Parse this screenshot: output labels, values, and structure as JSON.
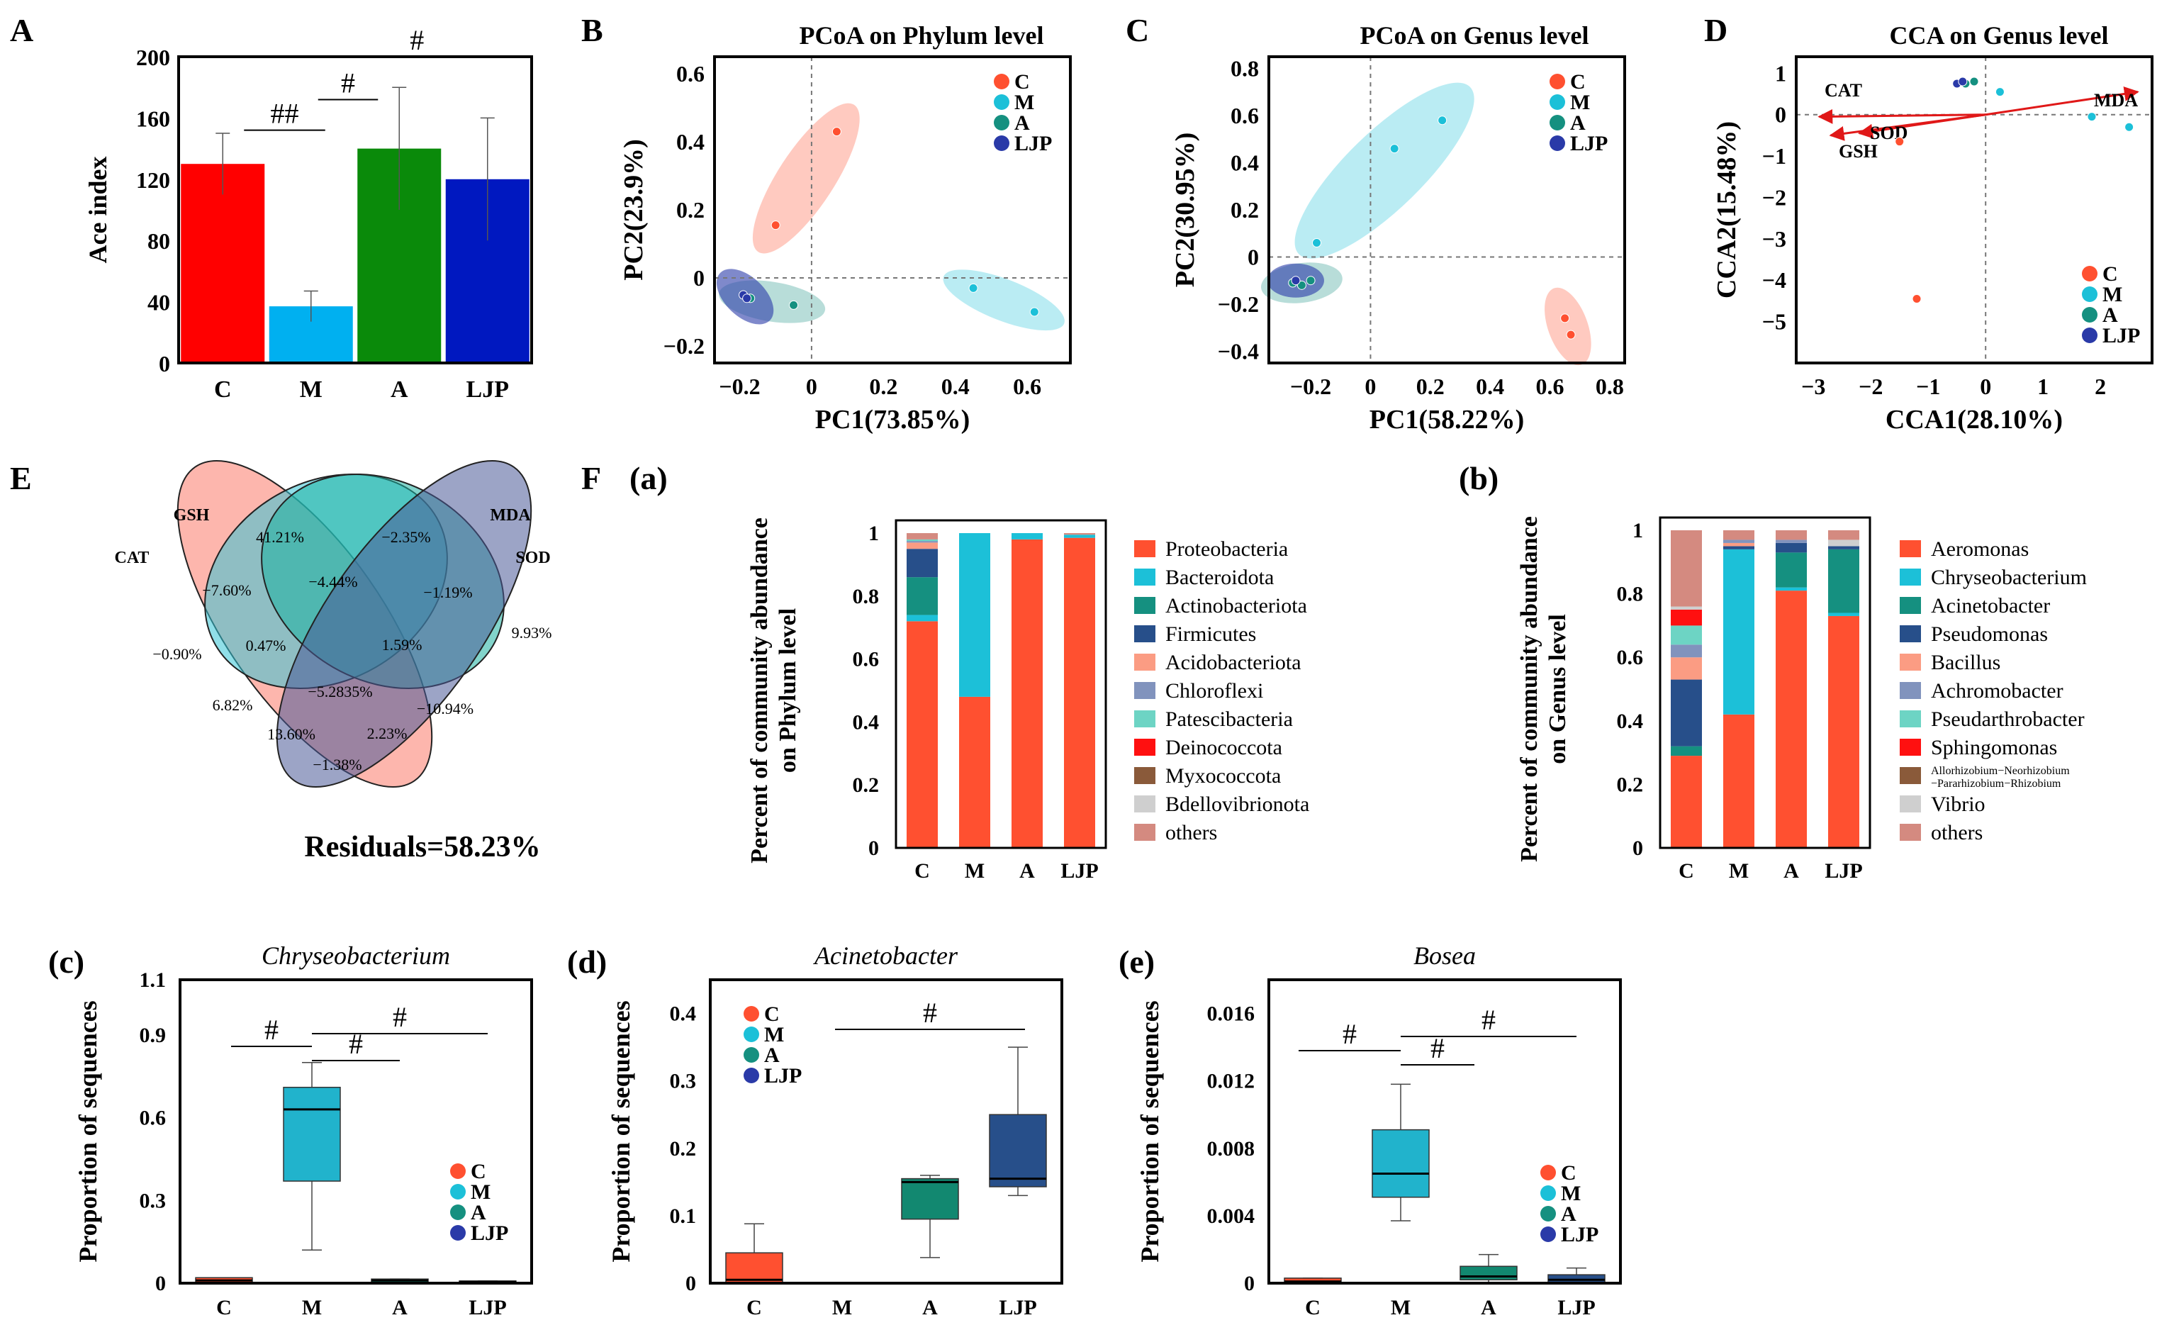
{
  "colors": {
    "C": "#ff5030",
    "M": "#1cc0d8",
    "A": "#159080",
    "LJP": "#2a3aa8",
    "barC": "#ff0000",
    "barM": "#00b0f0",
    "barA": "#0a8a0a",
    "barLJP": "#0018c0"
  },
  "panel_labels": {
    "A": "A",
    "B": "B",
    "C": "C",
    "D": "D",
    "E": "E",
    "F": "F",
    "Fa": "(a)",
    "Fb": "(b)",
    "c": "(c)",
    "d": "(d)",
    "e": "(e)"
  },
  "legend_groups": [
    "C",
    "M",
    "A",
    "LJP"
  ],
  "chart_data": [
    {
      "id": "A",
      "type": "bar",
      "ylabel": "Ace index",
      "categories": [
        "C",
        "M",
        "A",
        "LJP"
      ],
      "values": [
        130,
        37,
        140,
        120
      ],
      "errors": [
        20,
        10,
        40,
        40
      ],
      "ylim": [
        0,
        200
      ],
      "yticks": [
        0,
        40,
        80,
        120,
        160,
        200
      ],
      "sig": [
        {
          "from": "C",
          "to": "M",
          "label": "##"
        },
        {
          "from": "M",
          "to": "A",
          "label": "#"
        },
        {
          "from": "M",
          "to": "LJP",
          "label": "#"
        }
      ]
    },
    {
      "id": "B",
      "type": "scatter",
      "title": "PCoA on Phylum level",
      "xlabel": "PC1(73.85%)",
      "ylabel": "PC2(23.9%)",
      "xlim": [
        -0.27,
        0.72
      ],
      "ylim": [
        -0.25,
        0.65
      ],
      "xticks": [
        -0.2,
        0,
        0.2,
        0.4,
        0.6
      ],
      "yticks": [
        -0.2,
        0,
        0.2,
        0.4,
        0.6
      ],
      "xtick_labels": [
        "−0.2",
        "0",
        "0.2",
        "0.4",
        "0.6"
      ],
      "ytick_labels": [
        "−0.2",
        "0",
        "0.2",
        "0.4",
        "0.6"
      ],
      "groups": [
        {
          "name": "C",
          "points": [
            [
              0.07,
              0.43
            ],
            [
              -0.1,
              0.155
            ]
          ]
        },
        {
          "name": "M",
          "points": [
            [
              0.45,
              -0.03
            ],
            [
              0.62,
              -0.1
            ]
          ]
        },
        {
          "name": "A",
          "points": [
            [
              -0.05,
              -0.08
            ],
            [
              -0.17,
              -0.06
            ]
          ]
        },
        {
          "name": "LJP",
          "points": [
            [
              -0.19,
              -0.05
            ],
            [
              -0.18,
              -0.06
            ]
          ]
        }
      ]
    },
    {
      "id": "C",
      "type": "scatter",
      "title": "PCoA on Genus level",
      "xlabel": "PC1(58.22%)",
      "ylabel": "PC2(30.95%)",
      "xlim": [
        -0.34,
        0.85
      ],
      "ylim": [
        -0.45,
        0.85
      ],
      "xticks": [
        -0.2,
        0,
        0.2,
        0.4,
        0.6,
        0.8
      ],
      "yticks": [
        -0.4,
        -0.2,
        0,
        0.2,
        0.4,
        0.6,
        0.8
      ],
      "xtick_labels": [
        "−0.2",
        "0",
        "0.2",
        "0.4",
        "0.6",
        "0.8"
      ],
      "ytick_labels": [
        "−0.4",
        "−0.2",
        "0",
        "0.2",
        "0.4",
        "0.6",
        "0.8"
      ],
      "groups": [
        {
          "name": "C",
          "points": [
            [
              0.65,
              -0.26
            ],
            [
              0.67,
              -0.33
            ]
          ]
        },
        {
          "name": "M",
          "points": [
            [
              -0.18,
              0.06
            ],
            [
              0.08,
              0.46
            ],
            [
              0.24,
              0.58
            ]
          ]
        },
        {
          "name": "A",
          "points": [
            [
              -0.26,
              -0.11
            ],
            [
              -0.23,
              -0.12
            ],
            [
              -0.2,
              -0.1
            ]
          ]
        },
        {
          "name": "LJP",
          "points": [
            [
              -0.25,
              -0.1
            ]
          ]
        }
      ]
    },
    {
      "id": "D",
      "type": "scatter",
      "title": "CCA on Genus level",
      "xlabel": "CCA1(28.10%)",
      "ylabel": "CCA2(15.48%)",
      "xlim": [
        -3.3,
        2.9
      ],
      "ylim": [
        -6.0,
        1.4
      ],
      "xticks": [
        -3,
        -2,
        -1,
        0,
        1,
        2
      ],
      "yticks": [
        -5,
        -4,
        -3,
        -2,
        -1,
        0,
        1
      ],
      "xtick_labels": [
        "−3",
        "−2",
        "−1",
        "0",
        "1",
        "2"
      ],
      "ytick_labels": [
        "−5",
        "−4",
        "−3",
        "−2",
        "−1",
        "0",
        "1"
      ],
      "groups": [
        {
          "name": "C",
          "points": [
            [
              -1.5,
              -0.65
            ],
            [
              -1.2,
              -4.45
            ]
          ]
        },
        {
          "name": "M",
          "points": [
            [
              0.25,
              0.55
            ],
            [
              1.85,
              -0.05
            ],
            [
              2.5,
              -0.3
            ]
          ]
        },
        {
          "name": "A",
          "points": [
            [
              -0.35,
              0.75
            ],
            [
              -0.2,
              0.8
            ]
          ]
        },
        {
          "name": "LJP",
          "points": [
            [
              -0.5,
              0.75
            ],
            [
              -0.4,
              0.8
            ]
          ]
        }
      ],
      "arrows": [
        {
          "label": "CAT",
          "x": -2.9,
          "y": -0.05
        },
        {
          "label": "MDA",
          "x": 2.65,
          "y": 0.55
        },
        {
          "label": "SOD",
          "x": -2.2,
          "y": -0.45
        },
        {
          "label": "GSH",
          "x": -2.7,
          "y": -0.5
        }
      ]
    },
    {
      "id": "E",
      "type": "venn",
      "sets": [
        "GSH",
        "MDA",
        "CAT",
        "SOD"
      ],
      "regions": [
        "41.21%",
        "−2.35%",
        "−0.90%",
        "9.93%",
        "−7.60%",
        "−4.44%",
        "−1.19%",
        "0.47%",
        "1.59%",
        "6.82%",
        "−5.2835%",
        "−10.94%",
        "13.60%",
        "2.23%",
        "−1.38%"
      ],
      "residuals": "Residuals=58.23%"
    },
    {
      "id": "Fa",
      "type": "bar",
      "stacked": true,
      "ylabel": "Percent of community abundance on Phylum level",
      "categories": [
        "C",
        "M",
        "A",
        "LJP"
      ],
      "yticks": [
        0,
        0.2,
        0.4,
        0.6,
        0.8,
        1
      ],
      "ytick_labels": [
        "0",
        "0.2",
        "0.4",
        "0.6",
        "0.8",
        "1"
      ],
      "series": [
        {
          "name": "Proteobacteria",
          "color": "#ff5030",
          "values": [
            0.72,
            0.48,
            0.98,
            0.985
          ]
        },
        {
          "name": "Bacteroidota",
          "color": "#1cc0d8",
          "values": [
            0.02,
            0.52,
            0.02,
            0.01
          ]
        },
        {
          "name": "Actinobacteriota",
          "color": "#159080",
          "values": [
            0.12,
            0,
            0,
            0
          ]
        },
        {
          "name": "Firmicutes",
          "color": "#274f8a",
          "values": [
            0.09,
            0,
            0,
            0
          ]
        },
        {
          "name": "Acidobacteriota",
          "color": "#fb9c83",
          "values": [
            0.02,
            0,
            0,
            0
          ]
        },
        {
          "name": "Chloroflexi",
          "color": "#8193bd",
          "values": [
            0.005,
            0,
            0,
            0
          ]
        },
        {
          "name": "Patescibacteria",
          "color": "#6dd4c4",
          "values": [
            0.005,
            0,
            0,
            0
          ]
        },
        {
          "name": "Deinococcota",
          "color": "#ff1010",
          "values": [
            0,
            0,
            0,
            0
          ]
        },
        {
          "name": "Myxococcota",
          "color": "#8a5a3a",
          "values": [
            0,
            0,
            0,
            0
          ]
        },
        {
          "name": "Bdellovibrionota",
          "color": "#cfcfcf",
          "values": [
            0,
            0,
            0,
            0
          ]
        },
        {
          "name": "others",
          "color": "#d48a80",
          "values": [
            0.02,
            0,
            0,
            0.005
          ]
        }
      ]
    },
    {
      "id": "Fb",
      "type": "bar",
      "stacked": true,
      "ylabel": "Percent of community abundance on Genus level",
      "categories": [
        "C",
        "M",
        "A",
        "LJP"
      ],
      "yticks": [
        0,
        0.2,
        0.4,
        0.6,
        0.8,
        1
      ],
      "ytick_labels": [
        "0",
        "0.2",
        "0.4",
        "0.6",
        "0.8",
        "1"
      ],
      "series": [
        {
          "name": "Aeromonas",
          "color": "#ff5030",
          "values": [
            0.29,
            0.42,
            0.81,
            0.73
          ]
        },
        {
          "name": "Chryseobacterium",
          "color": "#1cc0d8",
          "values": [
            0.0,
            0.52,
            0.01,
            0.01
          ]
        },
        {
          "name": "Acinetobacter",
          "color": "#159080",
          "values": [
            0.03,
            0.0,
            0.11,
            0.2
          ]
        },
        {
          "name": "Pseudomonas",
          "color": "#274f8a",
          "values": [
            0.21,
            0.01,
            0.03,
            0.01
          ]
        },
        {
          "name": "Bacillus",
          "color": "#fb9c83",
          "values": [
            0.07,
            0.01,
            0.0,
            0.0
          ]
        },
        {
          "name": "Achromobacter",
          "color": "#8193bd",
          "values": [
            0.04,
            0.01,
            0.01,
            0.0
          ]
        },
        {
          "name": "Pseudarthrobacter",
          "color": "#6dd4c4",
          "values": [
            0.06,
            0.0,
            0.0,
            0.0
          ]
        },
        {
          "name": "Sphingomonas",
          "color": "#ff1010",
          "values": [
            0.05,
            0.0,
            0.0,
            0.0
          ]
        },
        {
          "name": "Allorhizobium−Neorhizobium −Pararhizobium−Rhizobium",
          "color": "#8a5a3a",
          "values": [
            0.0,
            0.0,
            0.0,
            0.0
          ]
        },
        {
          "name": "Vibrio",
          "color": "#cfcfcf",
          "values": [
            0.01,
            0.0,
            0.0,
            0.02
          ]
        },
        {
          "name": "others",
          "color": "#d48a80",
          "values": [
            0.24,
            0.03,
            0.03,
            0.03
          ]
        }
      ]
    },
    {
      "id": "c",
      "type": "box",
      "title": "Chryseobacterium",
      "ylabel": "Proportion of sequences",
      "categories": [
        "C",
        "M",
        "A",
        "LJP"
      ],
      "ylim": [
        0,
        1.1
      ],
      "yticks": [
        0,
        0.3,
        0.6,
        0.9,
        1.1
      ],
      "ytick_labels": [
        "0",
        "0.3",
        "0.6",
        "0.9",
        "1.1"
      ],
      "boxes": [
        {
          "min": 0,
          "q1": 0,
          "median": 0.01,
          "q3": 0.02,
          "max": 0.02
        },
        {
          "min": 0.12,
          "q1": 0.37,
          "median": 0.63,
          "q3": 0.71,
          "max": 0.8
        },
        {
          "min": 0,
          "q1": 0,
          "median": 0.01,
          "q3": 0.015,
          "max": 0.015
        },
        {
          "min": 0,
          "q1": 0,
          "median": 0.005,
          "q3": 0.008,
          "max": 0.008
        }
      ],
      "sig": [
        {
          "from": "C",
          "to": "M",
          "label": "#"
        },
        {
          "from": "M",
          "to": "A",
          "label": "#"
        },
        {
          "from": "M",
          "to": "LJP",
          "label": "#"
        }
      ]
    },
    {
      "id": "d",
      "type": "box",
      "title": "Acinetobacter",
      "ylabel": "Proportion of sequences",
      "categories": [
        "C",
        "M",
        "A",
        "LJP"
      ],
      "ylim": [
        0,
        0.45
      ],
      "yticks": [
        0,
        0.1,
        0.2,
        0.3,
        0.4
      ],
      "ytick_labels": [
        "0",
        "0.1",
        "0.2",
        "0.3",
        "0.4"
      ],
      "boxes": [
        {
          "min": 0,
          "q1": 0,
          "median": 0.005,
          "q3": 0.045,
          "max": 0.088
        },
        {
          "min": 0,
          "q1": 0,
          "median": 0,
          "q3": 0.001,
          "max": 0.001
        },
        {
          "min": 0.038,
          "q1": 0.095,
          "median": 0.15,
          "q3": 0.155,
          "max": 0.16
        },
        {
          "min": 0.13,
          "q1": 0.143,
          "median": 0.155,
          "q3": 0.25,
          "max": 0.35
        }
      ],
      "sig": [
        {
          "from": "M",
          "to": "LJP",
          "label": "#"
        }
      ]
    },
    {
      "id": "e",
      "type": "box",
      "title": "Bosea",
      "ylabel": "Proportion of sequences",
      "categories": [
        "C",
        "M",
        "A",
        "LJP"
      ],
      "ylim": [
        0,
        0.018
      ],
      "yticks": [
        0,
        0.004,
        0.008,
        0.012,
        0.016
      ],
      "ytick_labels": [
        "0",
        "0.004",
        "0.008",
        "0.012",
        "0.016"
      ],
      "boxes": [
        {
          "min": 0,
          "q1": 0,
          "median": 0.0001,
          "q3": 0.0003,
          "max": 0.0003
        },
        {
          "min": 0.0037,
          "q1": 0.0051,
          "median": 0.0065,
          "q3": 0.0091,
          "max": 0.0118
        },
        {
          "min": 0,
          "q1": 0.0002,
          "median": 0.0004,
          "q3": 0.001,
          "max": 0.0017
        },
        {
          "min": 0,
          "q1": 0,
          "median": 0.0002,
          "q3": 0.0005,
          "max": 0.0009
        }
      ],
      "sig": [
        {
          "from": "C",
          "to": "M",
          "label": "#"
        },
        {
          "from": "M",
          "to": "A",
          "label": "#"
        },
        {
          "from": "M",
          "to": "LJP",
          "label": "#"
        }
      ]
    }
  ]
}
